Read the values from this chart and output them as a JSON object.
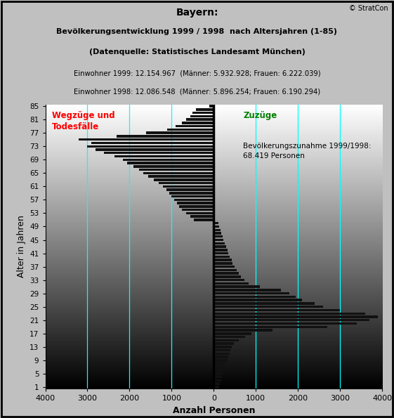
{
  "title_line1": "Bayern:",
  "title_line2": "Bevölkerungsentwicklung 1999 / 1998  nach Altersjahren (1-85)",
  "title_line3": "(Datenquelle: Statistisches Landesamt München)",
  "info_line1": "Einwohner 1999: 12.154.967  (Männer: 5.932.928; Frauen: 6.222.039)",
  "info_line2": "Einwohner 1998: 12.086.548  (Männer: 5.896.254; Frauen: 6.190.294)",
  "copyright": "© StratCon",
  "xlabel": "Anzahl Personen",
  "ylabel": "Alter in Jahren",
  "annotation": "Bevölkerungszunahme 1999/1998:\n68.419 Personen",
  "label_left": "Wegzüge und\nTodesfälle",
  "label_right": "Zuzüge",
  "cyan_lines": [
    -3000,
    -2000,
    -1000,
    1000,
    2000,
    3000
  ],
  "bar_color": "#111111",
  "ages": [
    1,
    2,
    3,
    4,
    5,
    6,
    7,
    8,
    9,
    10,
    11,
    12,
    13,
    14,
    15,
    16,
    17,
    18,
    19,
    20,
    21,
    22,
    23,
    24,
    25,
    26,
    27,
    28,
    29,
    30,
    31,
    32,
    33,
    34,
    35,
    36,
    37,
    38,
    39,
    40,
    41,
    42,
    43,
    44,
    45,
    46,
    47,
    48,
    49,
    50,
    51,
    52,
    53,
    54,
    55,
    56,
    57,
    58,
    59,
    60,
    61,
    62,
    63,
    64,
    65,
    66,
    67,
    68,
    69,
    70,
    71,
    72,
    73,
    74,
    75,
    76,
    77,
    78,
    79,
    80,
    81,
    82,
    83,
    84,
    85
  ],
  "values": [
    120,
    150,
    180,
    200,
    220,
    240,
    260,
    290,
    320,
    350,
    370,
    390,
    420,
    480,
    600,
    750,
    900,
    1400,
    2700,
    3400,
    3700,
    3900,
    3600,
    3000,
    2600,
    2400,
    2100,
    1950,
    1800,
    1600,
    1100,
    820,
    720,
    640,
    590,
    540,
    490,
    450,
    420,
    380,
    350,
    320,
    290,
    260,
    230,
    210,
    185,
    155,
    130,
    110,
    -480,
    -560,
    -650,
    -760,
    -830,
    -880,
    -940,
    -1000,
    -1060,
    -1120,
    -1200,
    -1310,
    -1430,
    -1560,
    -1680,
    -1780,
    -1900,
    -2050,
    -2150,
    -2350,
    -2600,
    -2800,
    -3000,
    -2900,
    -3200,
    -2300,
    -1600,
    -1100,
    -900,
    -750,
    -650,
    -560,
    -500,
    -420,
    -100
  ]
}
